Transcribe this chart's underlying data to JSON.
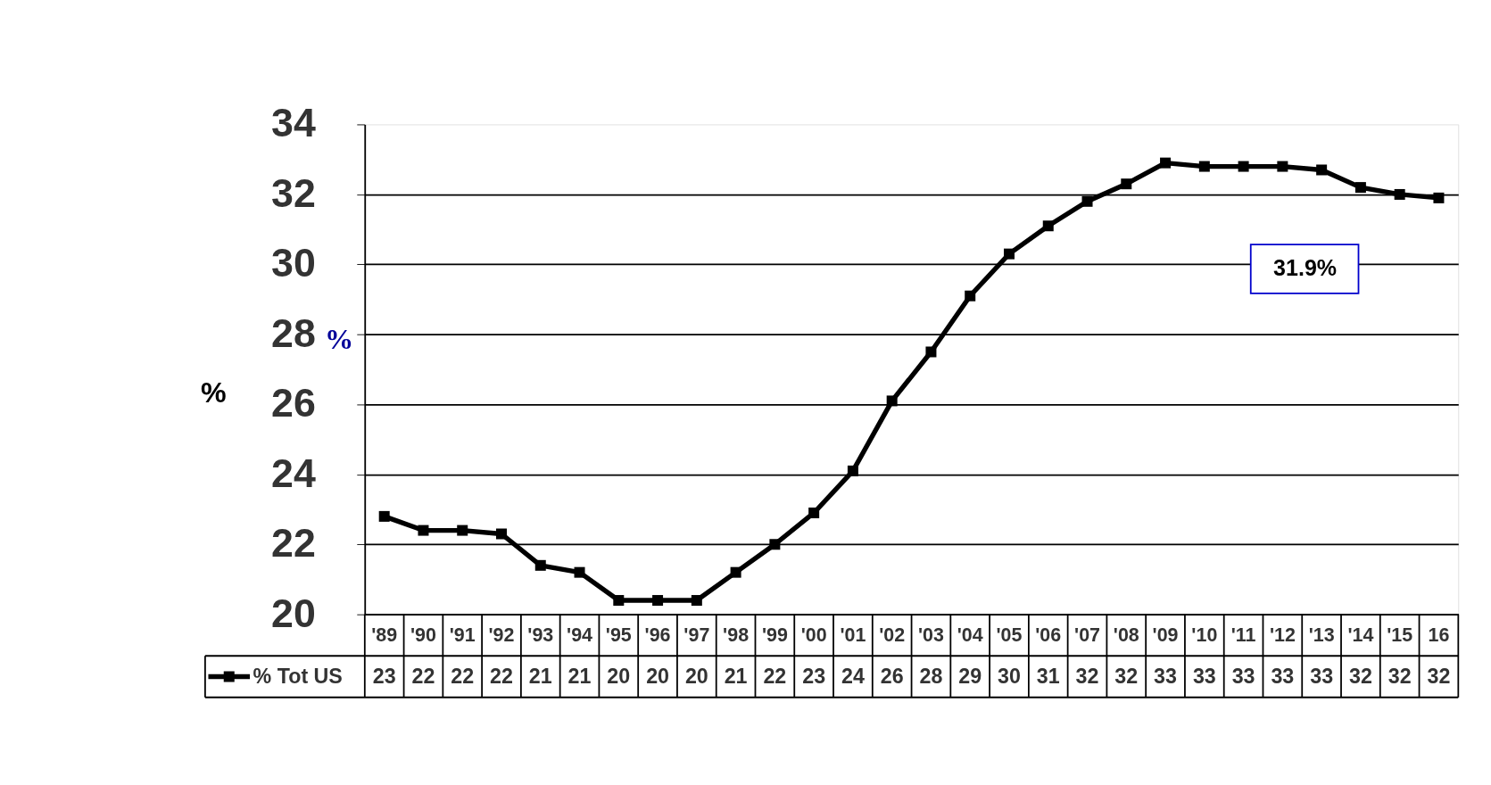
{
  "chart_data": {
    "type": "line",
    "ylabel": "%",
    "categories": [
      "'89",
      "'90",
      "'91",
      "'92",
      "'93",
      "'94",
      "'95",
      "'96",
      "'97",
      "'98",
      "'99",
      "'00",
      "'01",
      "'02",
      "'03",
      "'04",
      "'05",
      "'06",
      "'07",
      "'08",
      "'09",
      "'10",
      "'11",
      "'12",
      "'13",
      "'14",
      "'15",
      "16"
    ],
    "series": [
      {
        "name": "% Tot US",
        "color": "#000000",
        "values": [
          22.8,
          22.4,
          22.4,
          22.3,
          21.4,
          21.2,
          20.4,
          20.4,
          20.4,
          21.2,
          22.0,
          22.9,
          24.1,
          26.1,
          27.5,
          29.1,
          30.3,
          31.1,
          31.8,
          32.3,
          32.9,
          32.8,
          32.8,
          32.8,
          32.7,
          32.2,
          32.0,
          31.9
        ],
        "value_labels": [
          "23",
          "22",
          "22",
          "22",
          "21",
          "21",
          "20",
          "20",
          "20",
          "21",
          "22",
          "23",
          "24",
          "26",
          "28",
          "29",
          "30",
          "31",
          "32",
          "32",
          "33",
          "33",
          "33",
          "33",
          "33",
          "32",
          "32",
          "32"
        ]
      }
    ],
    "ylim": [
      20,
      34
    ],
    "yticks": [
      20,
      22,
      24,
      26,
      28,
      30,
      32,
      34
    ],
    "grid": "y",
    "legend": "bottom",
    "marker": "square",
    "line_style": "solid",
    "annotations": [
      "%",
      "31.9%"
    ]
  }
}
